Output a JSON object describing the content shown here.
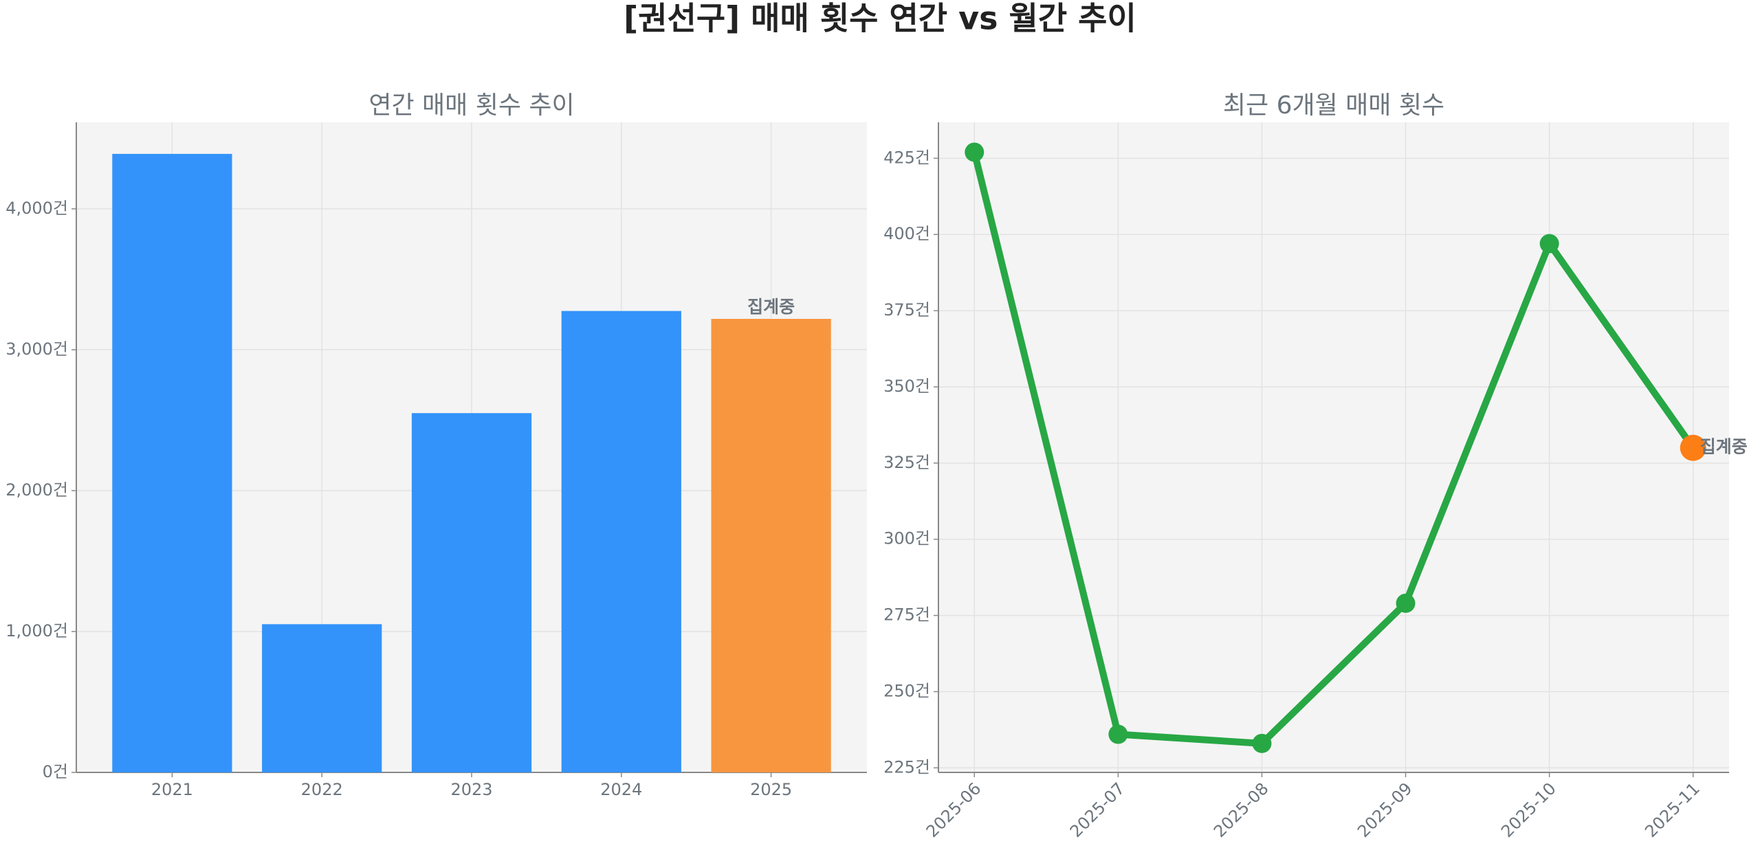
{
  "title": "[권선구] 매매 횟수 연간 vs 월간 추이",
  "chart_data": [
    {
      "type": "bar",
      "title": "연간 매매 횟수 추이",
      "categories": [
        "2021",
        "2022",
        "2023",
        "2024",
        "2025"
      ],
      "values": [
        4390,
        1052,
        2550,
        3275,
        3219
      ],
      "colors": [
        "#3393fb",
        "#3393fb",
        "#3393fb",
        "#3393fb",
        "#f89640"
      ],
      "ylim": [
        0,
        4614
      ],
      "yticks": [
        {
          "value": 0,
          "label": "0건"
        },
        {
          "value": 1000,
          "label": "1,000건"
        },
        {
          "value": 2000,
          "label": "2,000건"
        },
        {
          "value": 3000,
          "label": "3,000건"
        },
        {
          "value": 4000,
          "label": "4,000건"
        }
      ],
      "grid": true,
      "annotation": {
        "text": "집계중",
        "category": "2025",
        "color": "#f5832a"
      }
    },
    {
      "type": "line",
      "title": "최근 6개월 매매 횟수",
      "categories": [
        "2025-06",
        "2025-07",
        "2025-08",
        "2025-09",
        "2025-10",
        "2025-11"
      ],
      "values": [
        427,
        236,
        233,
        279,
        397,
        330
      ],
      "color": "#28a745",
      "marker_colors": [
        "#28a745",
        "#28a745",
        "#28a745",
        "#28a745",
        "#28a745",
        "#fd7e14"
      ],
      "ylim": [
        223.5,
        436.8
      ],
      "yticks": [
        {
          "value": 225,
          "label": "225건"
        },
        {
          "value": 250,
          "label": "250건"
        },
        {
          "value": 275,
          "label": "275건"
        },
        {
          "value": 300,
          "label": "300건"
        },
        {
          "value": 325,
          "label": "325건"
        },
        {
          "value": 350,
          "label": "350건"
        },
        {
          "value": 375,
          "label": "375건"
        },
        {
          "value": 400,
          "label": "400건"
        },
        {
          "value": 425,
          "label": "425건"
        }
      ],
      "grid": true,
      "annotation": {
        "text": "집계중",
        "category": "2025-11",
        "color": "#f5832a"
      }
    }
  ]
}
